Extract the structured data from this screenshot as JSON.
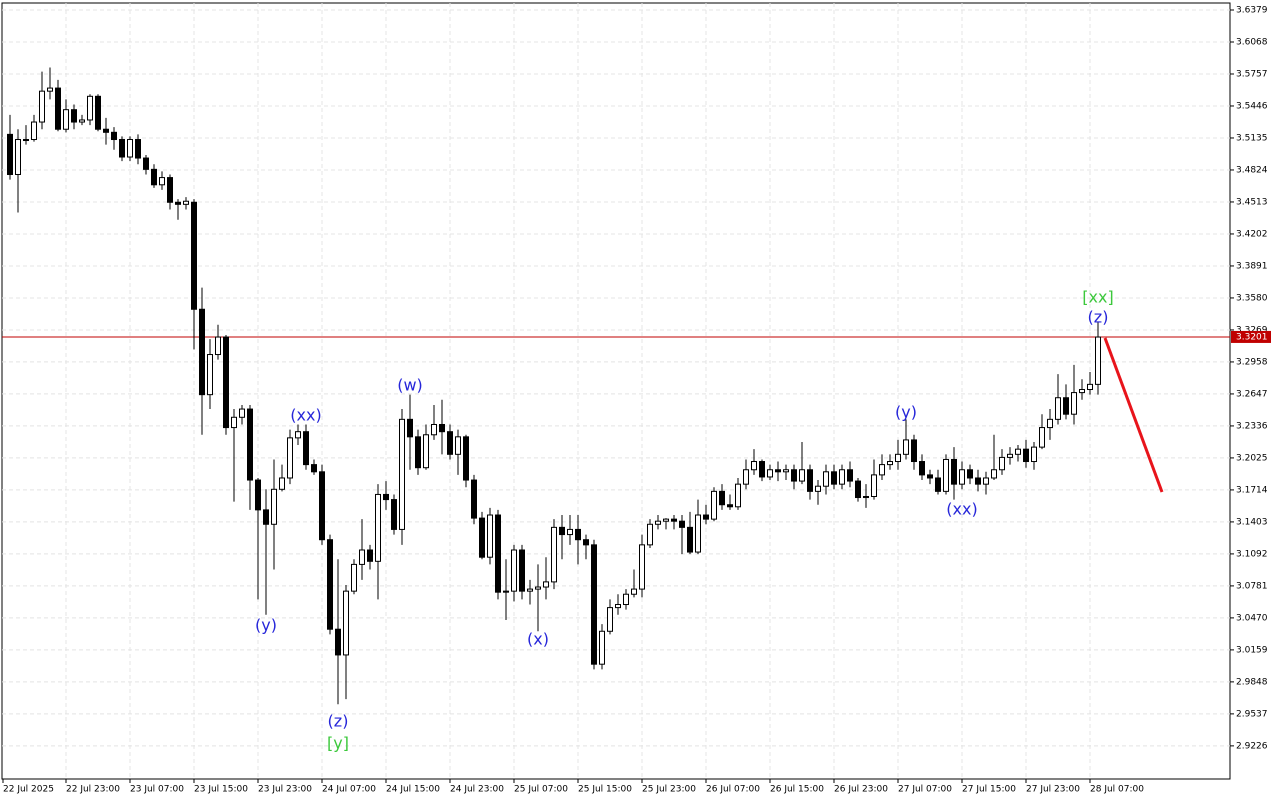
{
  "chart_data": {
    "type": "candlestick",
    "open": [
      3.517,
      3.478,
      3.512,
      3.512,
      3.529,
      3.559,
      3.562,
      3.522,
      3.541,
      3.529,
      3.531,
      3.554,
      3.522,
      3.519,
      3.512,
      3.495,
      3.512,
      3.494,
      3.483,
      3.468,
      3.475,
      3.451,
      3.449,
      3.451,
      3.347,
      3.264,
      3.303,
      3.32,
      3.232,
      3.242,
      3.25,
      3.181,
      3.152,
      3.138,
      3.172,
      3.183,
      3.222,
      3.228,
      3.196,
      3.189,
      3.123,
      3.036,
      3.011,
      3.073,
      3.099,
      3.113,
      3.102,
      3.167,
      3.162,
      3.133,
      3.24,
      3.223,
      3.193,
      3.225,
      3.235,
      3.228,
      3.206,
      3.223,
      3.181,
      3.144,
      3.106,
      3.147,
      3.072,
      3.073,
      3.113,
      3.073,
      3.075,
      3.077,
      3.082,
      3.135,
      3.128,
      3.133,
      3.123,
      3.118,
      3.002,
      3.034,
      3.057,
      3.06,
      3.07,
      3.075,
      3.118,
      3.138,
      3.141,
      3.143,
      3.141,
      3.135,
      3.111,
      3.147,
      3.143,
      3.17,
      3.157,
      3.155,
      3.177,
      3.191,
      3.199,
      3.184,
      3.191,
      3.189,
      3.191,
      3.18,
      3.191,
      3.17,
      3.175,
      3.189,
      3.177,
      3.191,
      3.18,
      3.164,
      3.165,
      3.186,
      3.196,
      3.199,
      3.206,
      3.22,
      3.199,
      3.186,
      3.183,
      3.17,
      3.201,
      3.177,
      3.191,
      3.183,
      3.177,
      3.183,
      3.191,
      3.203,
      3.206,
      3.211,
      3.199,
      3.213,
      3.232,
      3.24,
      3.261,
      3.245,
      3.266,
      3.269,
      3.274
    ],
    "high": [
      3.536,
      3.522,
      3.526,
      3.536,
      3.578,
      3.582,
      3.57,
      3.551,
      3.546,
      3.536,
      3.556,
      3.556,
      3.533,
      3.524,
      3.515,
      3.515,
      3.517,
      3.497,
      3.488,
      3.481,
      3.478,
      3.454,
      3.456,
      3.454,
      3.368,
      3.318,
      3.332,
      3.322,
      3.25,
      3.254,
      3.254,
      3.183,
      3.172,
      3.201,
      3.196,
      3.23,
      3.235,
      3.235,
      3.201,
      3.196,
      3.128,
      3.104,
      3.079,
      3.104,
      3.143,
      3.118,
      3.177,
      3.18,
      3.167,
      3.25,
      3.264,
      3.23,
      3.235,
      3.254,
      3.259,
      3.235,
      3.23,
      3.225,
      3.186,
      3.15,
      3.154,
      3.152,
      3.104,
      3.118,
      3.118,
      3.084,
      3.099,
      3.106,
      3.143,
      3.147,
      3.147,
      3.147,
      3.128,
      3.123,
      3.041,
      3.065,
      3.07,
      3.075,
      3.094,
      3.128,
      3.143,
      3.147,
      3.144,
      3.147,
      3.147,
      3.15,
      3.162,
      3.157,
      3.174,
      3.177,
      3.167,
      3.183,
      3.201,
      3.211,
      3.201,
      3.196,
      3.199,
      3.196,
      3.196,
      3.218,
      3.196,
      3.181,
      3.196,
      3.196,
      3.196,
      3.199,
      3.183,
      3.177,
      3.201,
      3.206,
      3.206,
      3.22,
      3.24,
      3.225,
      3.206,
      3.191,
      3.191,
      3.206,
      3.213,
      3.199,
      3.196,
      3.191,
      3.189,
      3.225,
      3.211,
      3.213,
      3.215,
      3.22,
      3.218,
      3.245,
      3.25,
      3.284,
      3.274,
      3.293,
      3.279,
      3.286,
      3.335
    ],
    "low": [
      3.473,
      3.441,
      3.507,
      3.51,
      3.522,
      3.551,
      3.52,
      3.519,
      3.522,
      3.526,
      3.526,
      3.52,
      3.507,
      3.502,
      3.491,
      3.491,
      3.488,
      3.478,
      3.465,
      3.463,
      3.444,
      3.434,
      3.444,
      3.308,
      3.225,
      3.25,
      3.298,
      3.225,
      3.16,
      3.235,
      3.152,
      3.065,
      3.05,
      3.094,
      3.17,
      3.177,
      3.215,
      3.191,
      3.186,
      3.118,
      3.031,
      2.963,
      2.968,
      3.07,
      3.084,
      3.094,
      3.065,
      3.152,
      3.128,
      3.118,
      3.191,
      3.186,
      3.191,
      3.22,
      3.206,
      3.201,
      3.186,
      3.174,
      3.138,
      3.104,
      3.099,
      3.065,
      3.045,
      3.063,
      3.065,
      3.06,
      3.034,
      3.065,
      3.075,
      3.104,
      3.118,
      3.099,
      3.104,
      2.997,
      2.997,
      3.031,
      3.05,
      3.055,
      3.067,
      3.067,
      3.115,
      3.133,
      3.133,
      3.133,
      3.109,
      3.109,
      3.109,
      3.138,
      3.141,
      3.152,
      3.152,
      3.152,
      3.172,
      3.186,
      3.18,
      3.181,
      3.18,
      3.181,
      3.172,
      3.177,
      3.162,
      3.157,
      3.167,
      3.172,
      3.172,
      3.174,
      3.16,
      3.154,
      3.162,
      3.181,
      3.191,
      3.191,
      3.201,
      3.191,
      3.181,
      3.177,
      3.167,
      3.167,
      3.162,
      3.172,
      3.177,
      3.17,
      3.167,
      3.181,
      3.186,
      3.196,
      3.199,
      3.193,
      3.191,
      3.211,
      3.22,
      3.235,
      3.24,
      3.235,
      3.259,
      3.264,
      3.264
    ],
    "close": [
      3.478,
      3.512,
      3.512,
      3.529,
      3.559,
      3.562,
      3.522,
      3.541,
      3.529,
      3.531,
      3.554,
      3.522,
      3.519,
      3.512,
      3.495,
      3.512,
      3.494,
      3.483,
      3.468,
      3.475,
      3.451,
      3.449,
      3.452,
      3.347,
      3.264,
      3.303,
      3.32,
      3.232,
      3.242,
      3.25,
      3.181,
      3.152,
      3.138,
      3.172,
      3.183,
      3.222,
      3.228,
      3.196,
      3.189,
      3.123,
      3.036,
      3.011,
      3.073,
      3.099,
      3.113,
      3.102,
      3.167,
      3.162,
      3.133,
      3.24,
      3.223,
      3.193,
      3.225,
      3.235,
      3.228,
      3.206,
      3.223,
      3.181,
      3.144,
      3.106,
      3.147,
      3.072,
      3.073,
      3.113,
      3.073,
      3.075,
      3.077,
      3.082,
      3.135,
      3.128,
      3.133,
      3.123,
      3.118,
      3.002,
      3.034,
      3.057,
      3.06,
      3.07,
      3.075,
      3.118,
      3.138,
      3.141,
      3.143,
      3.141,
      3.135,
      3.111,
      3.147,
      3.143,
      3.17,
      3.157,
      3.155,
      3.177,
      3.191,
      3.199,
      3.184,
      3.191,
      3.189,
      3.191,
      3.18,
      3.191,
      3.17,
      3.175,
      3.189,
      3.177,
      3.191,
      3.18,
      3.164,
      3.165,
      3.186,
      3.196,
      3.199,
      3.206,
      3.22,
      3.199,
      3.186,
      3.183,
      3.17,
      3.201,
      3.177,
      3.191,
      3.183,
      3.177,
      3.183,
      3.191,
      3.203,
      3.206,
      3.211,
      3.199,
      3.213,
      3.232,
      3.24,
      3.261,
      3.245,
      3.266,
      3.269,
      3.274,
      3.32
    ],
    "up_color": "#ffffff",
    "down_color": "#000000",
    "current_price": 3.3201,
    "current_price_color": "#c00000",
    "ylim": [
      2.8904,
      3.6447
    ],
    "yticks": [
      3.6379,
      3.6068,
      3.5757,
      3.5446,
      3.5135,
      3.4824,
      3.4513,
      3.4202,
      3.3891,
      {
        "value": 3.358,
        "label": "3.3580"
      },
      3.3269,
      3.2958,
      3.2647,
      3.2336,
      3.2025,
      3.1714,
      3.1403,
      3.1092,
      3.0781,
      {
        "value": 3.047,
        "label": "3.0470"
      },
      3.0159,
      2.9848,
      2.9537,
      2.9226
    ],
    "x_tick_labels": [
      "22 Jul 2025",
      "22 Jul 23:00",
      "23 Jul 07:00",
      "23 Jul 15:00",
      "23 Jul 23:00",
      "24 Jul 07:00",
      "24 Jul 15:00",
      "24 Jul 23:00",
      "25 Jul 07:00",
      "25 Jul 15:00",
      "25 Jul 23:00",
      "26 Jul 07:00",
      "26 Jul 15:00",
      "26 Jul 23:00",
      "27 Jul 07:00",
      "27 Jul 15:00",
      "27 Jul 23:00",
      "28 Jul 07:00"
    ],
    "grid": true,
    "annotations": [
      {
        "text": "(y)",
        "color": "#2626d9"
      },
      {
        "text": "(xx)",
        "color": "#2626d9"
      },
      {
        "text": "(z)",
        "color": "#2626d9"
      },
      {
        "text": "[y]",
        "color": "#3cc83c"
      },
      {
        "text": "(w)",
        "color": "#2626d9"
      },
      {
        "text": "(x)",
        "color": "#2626d9"
      },
      {
        "text": "(y)",
        "color": "#2626d9"
      },
      {
        "text": "(xx)",
        "color": "#2626d9"
      },
      {
        "text": "[xx]",
        "color": "#3cc83c"
      },
      {
        "text": "(z)",
        "color": "#2626d9"
      }
    ]
  }
}
